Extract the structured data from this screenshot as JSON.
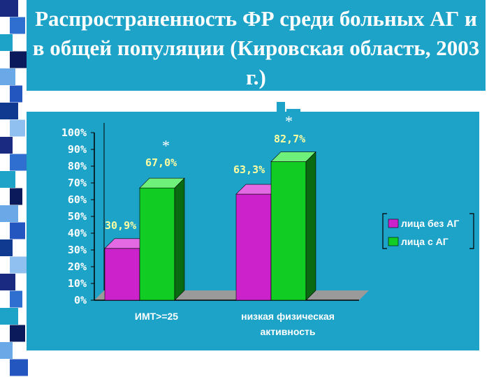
{
  "title": "Распространенность ФР среди больных АГ и в общей популяции (Кировская область, 2003 г.)",
  "colors": {
    "background": "#1ea3c8",
    "title_text": "#ffffff",
    "data_labels": "#ffffa0",
    "series_magenta": "#cc22cc",
    "series_green": "#11cc22"
  },
  "chart_data": {
    "type": "bar",
    "title": "",
    "xlabel": "",
    "ylabel": "",
    "ylim": [
      0,
      100
    ],
    "yticks": [
      "0%",
      "10%",
      "20%",
      "30%",
      "40%",
      "50%",
      "60%",
      "70%",
      "80%",
      "90%",
      "100%"
    ],
    "categories": [
      "ИМТ>=25",
      "низкая физическая активность"
    ],
    "series": [
      {
        "name": "лица без АГ",
        "values": [
          30.9,
          63.3
        ],
        "labels": [
          "30,9%",
          "63,3%"
        ],
        "color": "#cc22cc"
      },
      {
        "name": "лица с АГ",
        "values": [
          67.0,
          82.7
        ],
        "labels": [
          "67,0%",
          "82,7%"
        ],
        "color": "#11cc22"
      }
    ],
    "annotations": [
      "*",
      "*"
    ],
    "legend": "right",
    "grid": false
  }
}
